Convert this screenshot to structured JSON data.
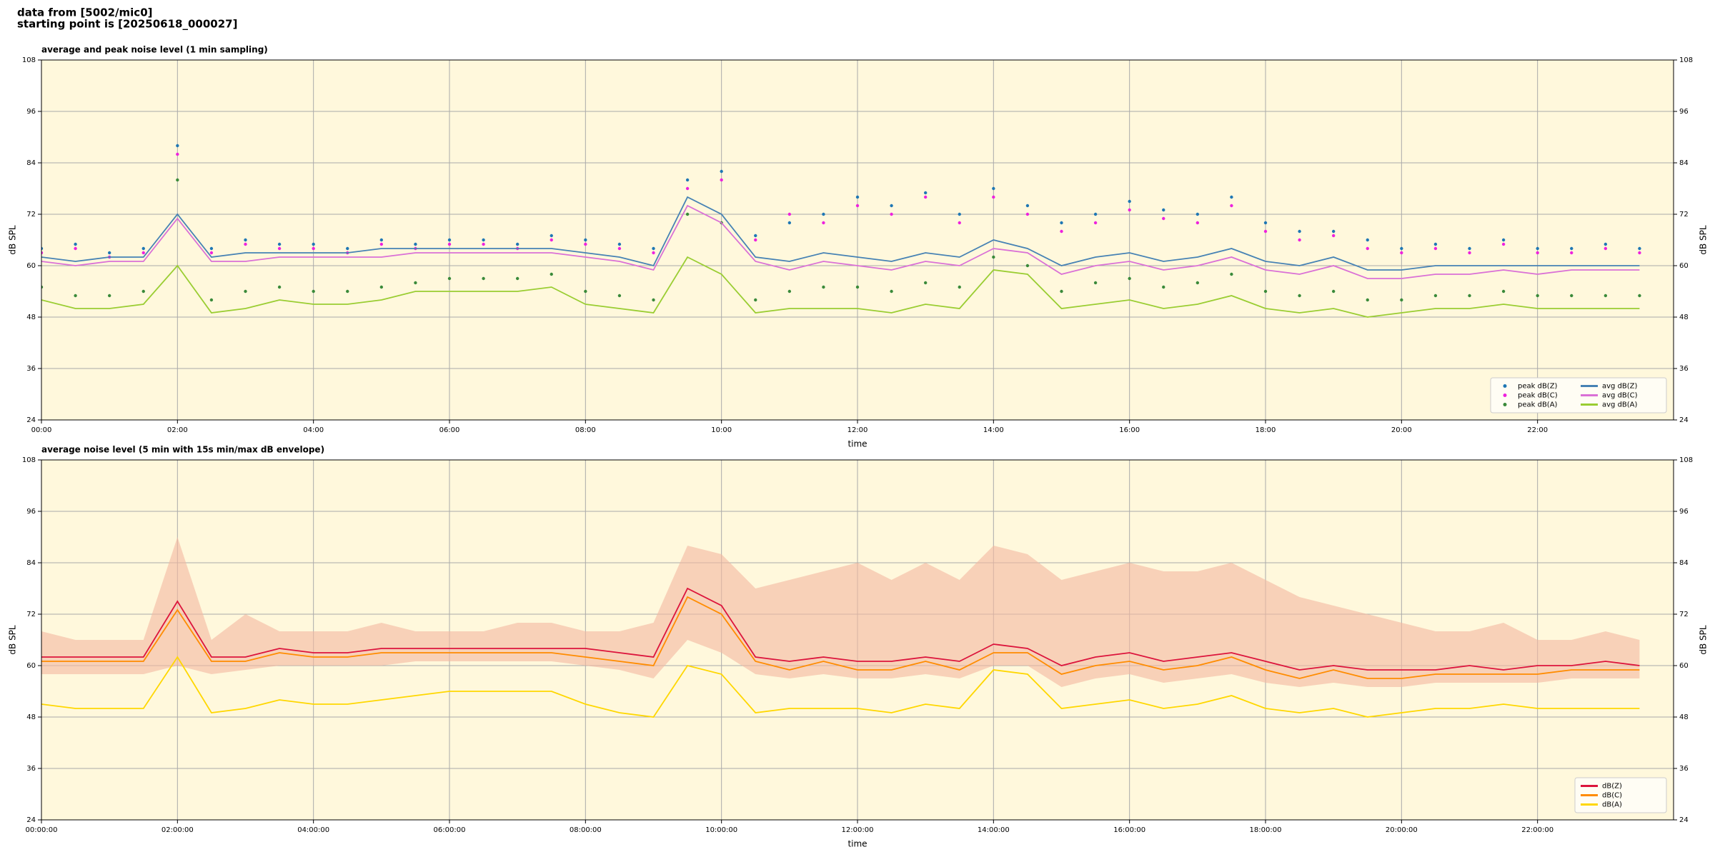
{
  "header": {
    "line1": "data from [5002/mic0]",
    "line2": "starting point is [20250618_000027]"
  },
  "chart_data": [
    {
      "type": "line",
      "title": "average and peak noise level (1 min sampling)",
      "xlabel": "time",
      "ylabel": "dB SPL",
      "xlim": [
        0,
        24
      ],
      "ylim": [
        24,
        108
      ],
      "yticks": [
        24,
        36,
        48,
        60,
        72,
        84,
        96,
        108
      ],
      "xticks": [
        {
          "value": 0,
          "label": "00:00"
        },
        {
          "value": 2,
          "label": "02:00"
        },
        {
          "value": 4,
          "label": "04:00"
        },
        {
          "value": 6,
          "label": "06:00"
        },
        {
          "value": 8,
          "label": "08:00"
        },
        {
          "value": 10,
          "label": "10:00"
        },
        {
          "value": 12,
          "label": "12:00"
        },
        {
          "value": 14,
          "label": "14:00"
        },
        {
          "value": 16,
          "label": "16:00"
        },
        {
          "value": 18,
          "label": "18:00"
        },
        {
          "value": 20,
          "label": "20:00"
        },
        {
          "value": 22,
          "label": "22:00"
        }
      ],
      "grid": true,
      "legend": "lower right",
      "background": "#fff8dc",
      "x": [
        0,
        0.5,
        1,
        1.5,
        2,
        2.5,
        3,
        3.5,
        4,
        4.5,
        5,
        5.5,
        6,
        6.5,
        7,
        7.5,
        8,
        8.5,
        9,
        9.5,
        10,
        10.5,
        11,
        11.5,
        12,
        12.5,
        13,
        13.5,
        14,
        14.5,
        15,
        15.5,
        16,
        16.5,
        17,
        17.5,
        18,
        18.5,
        19,
        19.5,
        20,
        20.5,
        21,
        21.5,
        22,
        22.5,
        23,
        23.5
      ],
      "series": [
        {
          "name": "peak dB(Z)",
          "kind": "scatter",
          "color": "#1f77b4",
          "values": [
            64,
            65,
            63,
            64,
            88,
            64,
            66,
            65,
            65,
            64,
            66,
            65,
            66,
            66,
            65,
            67,
            66,
            65,
            64,
            80,
            82,
            67,
            70,
            72,
            76,
            74,
            77,
            72,
            78,
            74,
            70,
            72,
            75,
            73,
            72,
            76,
            70,
            68,
            68,
            66,
            64,
            65,
            64,
            66,
            64,
            64,
            65,
            64
          ]
        },
        {
          "name": "peak dB(C)",
          "kind": "scatter",
          "color": "#ee22dd",
          "values": [
            63,
            64,
            62,
            63,
            86,
            63,
            65,
            64,
            64,
            63,
            65,
            64,
            65,
            65,
            64,
            66,
            65,
            64,
            63,
            78,
            80,
            66,
            72,
            70,
            74,
            72,
            76,
            70,
            76,
            72,
            68,
            70,
            73,
            71,
            70,
            74,
            68,
            66,
            67,
            64,
            63,
            64,
            63,
            65,
            63,
            63,
            64,
            63
          ]
        },
        {
          "name": "peak dB(A)",
          "kind": "scatter",
          "color": "#3a8a3a",
          "values": [
            55,
            53,
            53,
            54,
            80,
            52,
            54,
            55,
            54,
            54,
            55,
            56,
            57,
            57,
            57,
            58,
            54,
            53,
            52,
            72,
            70,
            52,
            54,
            55,
            55,
            54,
            56,
            55,
            62,
            60,
            54,
            56,
            57,
            55,
            56,
            58,
            54,
            53,
            54,
            52,
            52,
            53,
            53,
            54,
            53,
            53,
            53,
            53
          ]
        },
        {
          "name": "avg dB(Z)",
          "kind": "line",
          "color": "#4682b4",
          "values": [
            62,
            61,
            62,
            62,
            72,
            62,
            63,
            63,
            63,
            63,
            64,
            64,
            64,
            64,
            64,
            64,
            63,
            62,
            60,
            76,
            72,
            62,
            61,
            63,
            62,
            61,
            63,
            62,
            66,
            64,
            60,
            62,
            63,
            61,
            62,
            64,
            61,
            60,
            62,
            59,
            59,
            60,
            60,
            60,
            60,
            60,
            60,
            60
          ]
        },
        {
          "name": "avg dB(C)",
          "kind": "line",
          "color": "#da70d6",
          "values": [
            61,
            60,
            61,
            61,
            71,
            61,
            61,
            62,
            62,
            62,
            62,
            63,
            63,
            63,
            63,
            63,
            62,
            61,
            59,
            74,
            70,
            61,
            59,
            61,
            60,
            59,
            61,
            60,
            64,
            63,
            58,
            60,
            61,
            59,
            60,
            62,
            59,
            58,
            60,
            57,
            57,
            58,
            58,
            59,
            58,
            59,
            59,
            59
          ]
        },
        {
          "name": "avg dB(A)",
          "kind": "line",
          "color": "#9acd32",
          "values": [
            52,
            50,
            50,
            51,
            60,
            49,
            50,
            52,
            51,
            51,
            52,
            54,
            54,
            54,
            54,
            55,
            51,
            50,
            49,
            62,
            58,
            49,
            50,
            50,
            50,
            49,
            51,
            50,
            59,
            58,
            50,
            51,
            52,
            50,
            51,
            53,
            50,
            49,
            50,
            48,
            49,
            50,
            50,
            51,
            50,
            50,
            50,
            50
          ]
        }
      ]
    },
    {
      "type": "line",
      "title": "average noise level (5 min with 15s min/max dB envelope)",
      "xlabel": "time",
      "ylabel": "dB SPL",
      "xlim": [
        0,
        24
      ],
      "ylim": [
        24,
        108
      ],
      "yticks": [
        24,
        36,
        48,
        60,
        72,
        84,
        96,
        108
      ],
      "xticks": [
        {
          "value": 0,
          "label": "00:00:00"
        },
        {
          "value": 2,
          "label": "02:00:00"
        },
        {
          "value": 4,
          "label": "04:00:00"
        },
        {
          "value": 6,
          "label": "06:00:00"
        },
        {
          "value": 8,
          "label": "08:00:00"
        },
        {
          "value": 10,
          "label": "10:00:00"
        },
        {
          "value": 12,
          "label": "12:00:00"
        },
        {
          "value": 14,
          "label": "14:00:00"
        },
        {
          "value": 16,
          "label": "16:00:00"
        },
        {
          "value": 18,
          "label": "18:00:00"
        },
        {
          "value": 20,
          "label": "20:00:00"
        },
        {
          "value": 22,
          "label": "22:00:00"
        }
      ],
      "grid": true,
      "legend": "lower right",
      "background": "#fff8dc",
      "x": [
        0,
        0.5,
        1,
        1.5,
        2,
        2.5,
        3,
        3.5,
        4,
        4.5,
        5,
        5.5,
        6,
        6.5,
        7,
        7.5,
        8,
        8.5,
        9,
        9.5,
        10,
        10.5,
        11,
        11.5,
        12,
        12.5,
        13,
        13.5,
        14,
        14.5,
        15,
        15.5,
        16,
        16.5,
        17,
        17.5,
        18,
        18.5,
        19,
        19.5,
        20,
        20.5,
        21,
        21.5,
        22,
        22.5,
        23,
        23.5
      ],
      "envelope": {
        "color": "#f4b8a0",
        "low": [
          58,
          58,
          58,
          58,
          60,
          58,
          59,
          60,
          60,
          60,
          60,
          61,
          61,
          61,
          61,
          61,
          60,
          59,
          57,
          66,
          63,
          58,
          57,
          58,
          57,
          57,
          58,
          57,
          60,
          60,
          55,
          57,
          58,
          56,
          57,
          58,
          56,
          55,
          56,
          55,
          55,
          56,
          56,
          56,
          56,
          57,
          57,
          57
        ],
        "high": [
          68,
          66,
          66,
          66,
          90,
          66,
          72,
          68,
          68,
          68,
          70,
          68,
          68,
          68,
          70,
          70,
          68,
          68,
          70,
          88,
          86,
          78,
          80,
          82,
          84,
          80,
          84,
          80,
          88,
          86,
          80,
          82,
          84,
          82,
          82,
          84,
          80,
          76,
          74,
          72,
          70,
          68,
          68,
          70,
          66,
          66,
          68,
          66
        ]
      },
      "series": [
        {
          "name": "dB(Z)",
          "kind": "line",
          "color": "#dc143c",
          "values": [
            62,
            62,
            62,
            62,
            75,
            62,
            62,
            64,
            63,
            63,
            64,
            64,
            64,
            64,
            64,
            64,
            64,
            63,
            62,
            78,
            74,
            62,
            61,
            62,
            61,
            61,
            62,
            61,
            65,
            64,
            60,
            62,
            63,
            61,
            62,
            63,
            61,
            59,
            60,
            59,
            59,
            59,
            60,
            59,
            60,
            60,
            61,
            60
          ]
        },
        {
          "name": "dB(C)",
          "kind": "line",
          "color": "#ff8c00",
          "values": [
            61,
            61,
            61,
            61,
            73,
            61,
            61,
            63,
            62,
            62,
            63,
            63,
            63,
            63,
            63,
            63,
            62,
            61,
            60,
            76,
            72,
            61,
            59,
            61,
            59,
            59,
            61,
            59,
            63,
            63,
            58,
            60,
            61,
            59,
            60,
            62,
            59,
            57,
            59,
            57,
            57,
            58,
            58,
            58,
            58,
            59,
            59,
            59
          ]
        },
        {
          "name": "dB(A)",
          "kind": "line",
          "color": "#ffd700",
          "values": [
            51,
            50,
            50,
            50,
            62,
            49,
            50,
            52,
            51,
            51,
            52,
            53,
            54,
            54,
            54,
            54,
            51,
            49,
            48,
            60,
            58,
            49,
            50,
            50,
            50,
            49,
            51,
            50,
            59,
            58,
            50,
            51,
            52,
            50,
            51,
            53,
            50,
            49,
            50,
            48,
            49,
            50,
            50,
            51,
            50,
            50,
            50,
            50
          ]
        }
      ]
    }
  ]
}
